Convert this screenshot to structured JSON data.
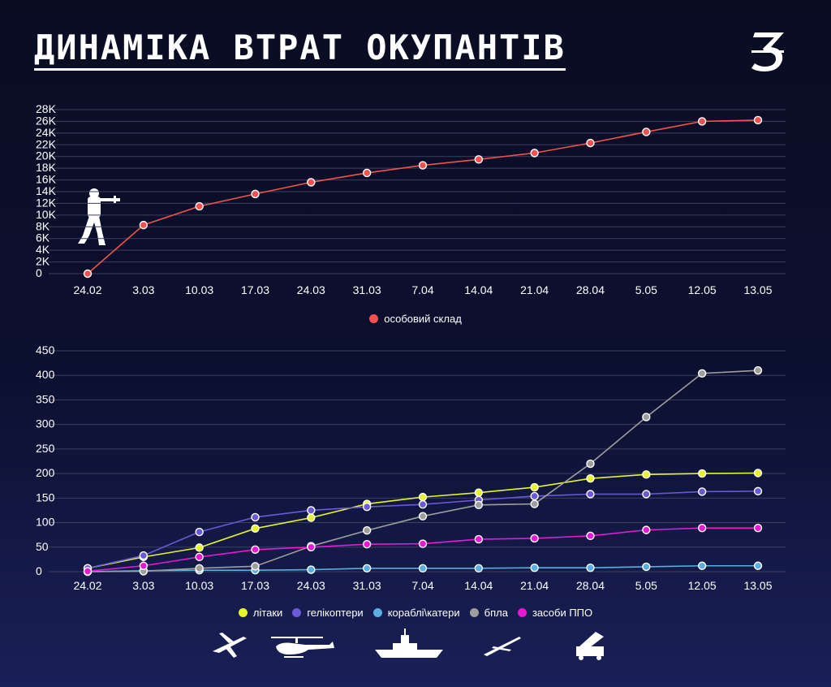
{
  "header": {
    "title": "ДИНАМІКА ВТРАТ ОКУПАНТІВ",
    "logo_text": "З"
  },
  "icons": {
    "soldier": "soldier-icon",
    "legend": [
      "airplane-icon",
      "helicopter-icon",
      "ship-icon",
      "drone-icon",
      "air-defense-icon"
    ]
  },
  "chart_data": [
    {
      "type": "line",
      "categories": [
        "24.02",
        "3.03",
        "10.03",
        "17.03",
        "24.03",
        "31.03",
        "7.04",
        "14.04",
        "21.04",
        "28.04",
        "5.05",
        "12.05",
        "13.05"
      ],
      "y_ticks": [
        "0",
        "2K",
        "4K",
        "6K",
        "8K",
        "10K",
        "12K",
        "14K",
        "16K",
        "18K",
        "20K",
        "22K",
        "24K",
        "26K",
        "28K"
      ],
      "ylim": [
        0,
        28000
      ],
      "grid": true,
      "legend_position": "bottom",
      "series": [
        {
          "name": "особовий склад",
          "color": "#f0524f",
          "values": [
            0,
            8300,
            11500,
            13600,
            15600,
            17200,
            18500,
            19500,
            20600,
            22300,
            24200,
            26000,
            26200
          ]
        }
      ]
    },
    {
      "type": "line",
      "categories": [
        "24.02",
        "3.03",
        "10.03",
        "17.03",
        "24.03",
        "31.03",
        "7.04",
        "14.04",
        "21.04",
        "28.04",
        "5.05",
        "12.05",
        "13.05"
      ],
      "y_ticks": [
        "0",
        "50",
        "100",
        "150",
        "200",
        "250",
        "300",
        "350",
        "400",
        "450"
      ],
      "ylim": [
        0,
        450
      ],
      "grid": true,
      "legend_position": "bottom",
      "series": [
        {
          "name": "літаки",
          "color": "#e5f52a",
          "values": [
            7,
            30,
            49,
            88,
            110,
            138,
            152,
            161,
            172,
            190,
            198,
            200,
            201
          ]
        },
        {
          "name": "гелікоптери",
          "color": "#6a5ad6",
          "values": [
            7,
            33,
            81,
            111,
            125,
            132,
            137,
            146,
            154,
            158,
            158,
            163,
            164
          ]
        },
        {
          "name": "кораблі\\катери",
          "color": "#5aaee0",
          "values": [
            0,
            2,
            3,
            3,
            4,
            7,
            7,
            7,
            8,
            8,
            10,
            12,
            12
          ]
        },
        {
          "name": "бпла",
          "color": "#9e9e9e",
          "values": [
            0,
            1,
            7,
            11,
            52,
            84,
            113,
            136,
            138,
            220,
            315,
            404,
            410
          ]
        },
        {
          "name": "засоби ППО",
          "color": "#e619d4",
          "values": [
            1,
            12,
            30,
            45,
            50,
            56,
            57,
            66,
            68,
            73,
            85,
            89,
            89
          ]
        }
      ]
    }
  ]
}
